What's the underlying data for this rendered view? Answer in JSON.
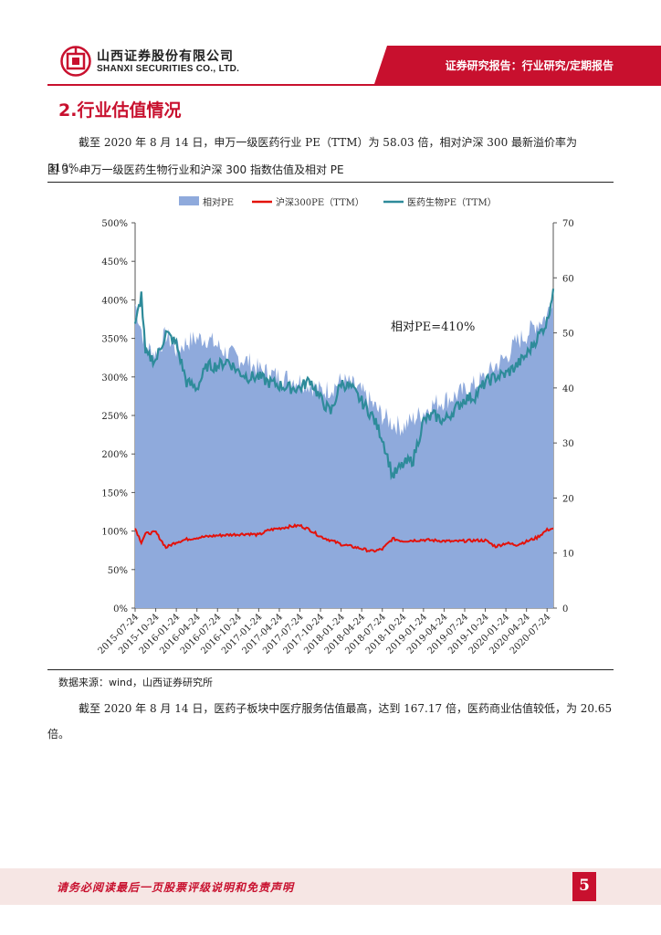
{
  "header": {
    "company_cn": "山西证券股份有限公司",
    "company_en": "SHANXI SECURITIES CO., LTD.",
    "report_type": "证券研究报告：行业研究/定期报告"
  },
  "section": {
    "title": "2.行业估值情况"
  },
  "paragraphs": {
    "p1": "截至 2020 年 8 月 14 日，申万一级医药行业 PE（TTM）为 58.03 倍，相对沪深 300 最新溢价率为 310%。",
    "p2": "截至 2020 年 8 月 14 日，医药子板块中医疗服务估值最高，达到 167.17 倍，医药商业估值较低，为 20.65 倍。"
  },
  "figure": {
    "title": "图 3：申万一级医药生物行业和沪深 300 指数估值及相对 PE",
    "source": "数据来源：wind，山西证券研究所"
  },
  "chart_data": {
    "type": "area+line",
    "annotation": "相对PE=410%",
    "legend": [
      "相对PE",
      "沪深300PE（TTM）",
      "医药生物PE（TTM）"
    ],
    "colors": {
      "relative": "#8faadc",
      "hs300": "#e3120b",
      "pharma": "#2e8b9a"
    },
    "x_ticks": [
      "2015-07-24",
      "2015-10-24",
      "2016-01-24",
      "2016-04-24",
      "2016-07-24",
      "2016-10-24",
      "2017-01-24",
      "2017-04-24",
      "2017-07-24",
      "2017-10-24",
      "2018-01-24",
      "2018-04-24",
      "2018-07-24",
      "2018-10-24",
      "2019-01-24",
      "2019-04-24",
      "2019-07-24",
      "2019-10-24",
      "2020-01-24",
      "2020-04-24",
      "2020-07-24"
    ],
    "y_left": {
      "ticks": [
        "0%",
        "50%",
        "100%",
        "150%",
        "200%",
        "250%",
        "300%",
        "350%",
        "400%",
        "450%",
        "500%"
      ],
      "min": 0,
      "max": 500
    },
    "y_right": {
      "ticks": [
        "0",
        "10",
        "20",
        "30",
        "40",
        "50",
        "60",
        "70"
      ],
      "min": 0,
      "max": 70
    },
    "series": [
      {
        "name": "相对PE",
        "axis": "left",
        "t": [
          0,
          0.5,
          1,
          1.5,
          2,
          2.5,
          3,
          3.5,
          4,
          4.5,
          5,
          5.5,
          6,
          6.5,
          7,
          7.5,
          8,
          8.5,
          9,
          9.5,
          10,
          10.5,
          11,
          11.5,
          12,
          12.5,
          13,
          13.5,
          14,
          14.5,
          15,
          15.5,
          16,
          16.5,
          17,
          17.5,
          18,
          18.5,
          19,
          19.5,
          20,
          20.3
        ],
        "values": [
          395,
          340,
          330,
          355,
          335,
          345,
          350,
          350,
          340,
          330,
          325,
          320,
          310,
          305,
          300,
          298,
          295,
          290,
          282,
          285,
          295,
          290,
          280,
          265,
          250,
          240,
          235,
          245,
          255,
          265,
          270,
          275,
          282,
          290,
          300,
          315,
          325,
          345,
          355,
          370,
          380,
          410
        ]
      },
      {
        "name": "沪深300PE（TTM）",
        "axis": "right",
        "t": [
          0,
          0.3,
          0.5,
          1,
          1.5,
          2,
          2.5,
          3,
          3.5,
          4,
          4.5,
          5,
          5.5,
          6,
          6.5,
          7,
          7.5,
          8,
          8.5,
          9,
          9.5,
          10,
          10.5,
          11,
          11.5,
          12,
          12.5,
          13,
          13.5,
          14,
          14.5,
          15,
          15.5,
          16,
          16.5,
          17,
          17.5,
          18,
          18.5,
          19,
          19.5,
          20,
          20.3
        ],
        "values": [
          14.5,
          12,
          13.5,
          13.8,
          11,
          12,
          12.5,
          12.8,
          13,
          13.2,
          13.3,
          13.4,
          13.5,
          13.3,
          14.2,
          14.5,
          14.8,
          15,
          14.2,
          13,
          12.3,
          11.6,
          11.2,
          10.8,
          10.3,
          10.7,
          12.6,
          12.2,
          12.3,
          12.4,
          12.3,
          12.2,
          12.1,
          12.2,
          12.3,
          12.3,
          11.2,
          11.8,
          11.5,
          12.1,
          12.8,
          14.2,
          14.5
        ]
      },
      {
        "name": "医药生物PE（TTM）",
        "axis": "right",
        "t": [
          0,
          0.3,
          0.5,
          1,
          1.5,
          2,
          2.5,
          3,
          3.5,
          4,
          4.5,
          5,
          5.5,
          6,
          6.5,
          7,
          7.5,
          8,
          8.5,
          9,
          9.5,
          10,
          10.5,
          11,
          11.5,
          12,
          12.5,
          13,
          13.5,
          14,
          14.5,
          15,
          15.5,
          16,
          16.5,
          17,
          17.5,
          18,
          18.5,
          19,
          19.5,
          20,
          20.3
        ],
        "values": [
          51,
          57,
          46,
          45,
          50,
          48,
          41,
          40,
          44,
          44,
          45,
          43,
          42,
          42,
          41,
          40.5,
          40,
          40,
          41.5,
          38,
          35.5,
          41,
          40,
          37.5,
          35,
          31,
          24,
          26,
          27,
          34,
          35,
          34,
          36,
          38,
          38.5,
          41,
          42,
          42.5,
          44,
          46,
          49,
          52,
          58
        ]
      }
    ]
  },
  "footer": {
    "disclaimer": "请务必阅读最后一页股票评级说明和免责声明",
    "page": "5"
  }
}
